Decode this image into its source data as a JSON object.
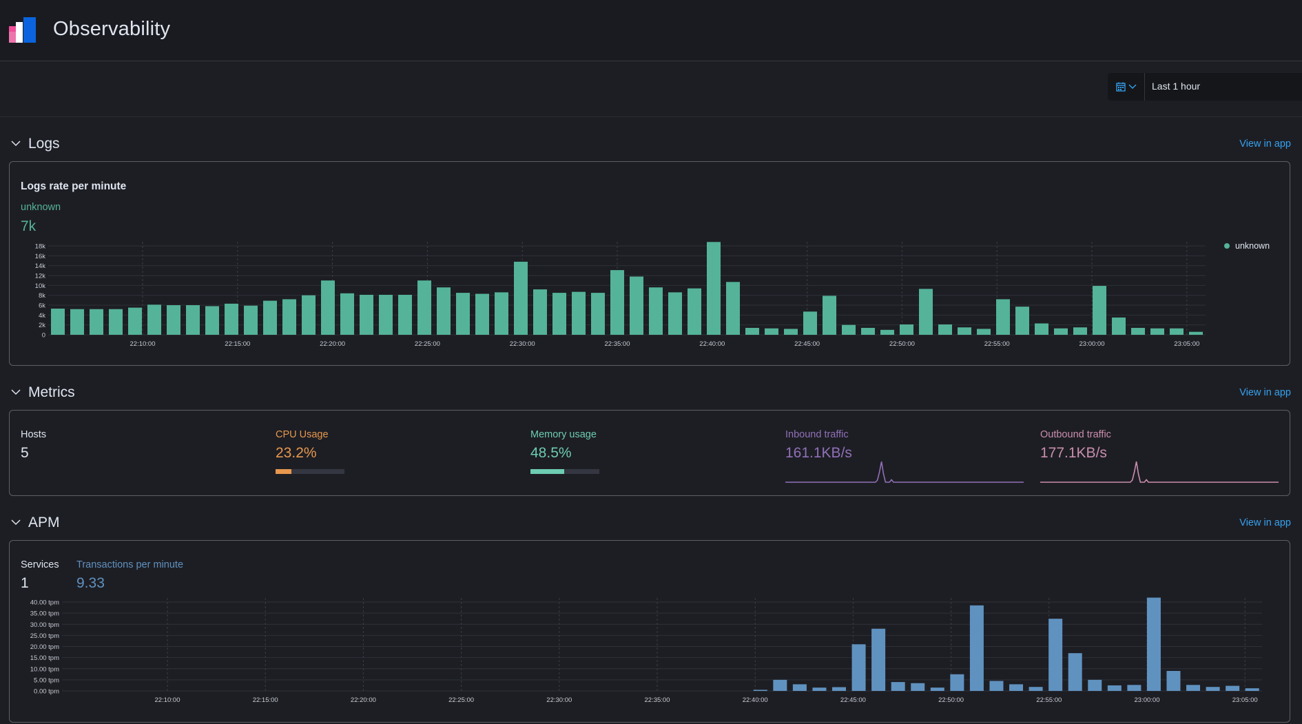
{
  "header": {
    "title": "Observability"
  },
  "toolbar": {
    "time_range": "Last 1 hour",
    "calendar_icon": "calendar-icon"
  },
  "logs": {
    "section_title": "Logs",
    "view_link": "View in app",
    "panel_title": "Logs rate per minute",
    "stat_label": "unknown",
    "stat_value": "7k",
    "legend_label": "unknown",
    "color": "#54b399"
  },
  "metrics": {
    "section_title": "Metrics",
    "view_link": "View in app",
    "hosts": {
      "label": "Hosts",
      "value": "5"
    },
    "cpu": {
      "label": "CPU Usage",
      "value": "23.2%",
      "fraction": 0.232,
      "color": "#e7974e"
    },
    "memory": {
      "label": "Memory usage",
      "value": "48.5%",
      "fraction": 0.485,
      "color": "#6dccb1"
    },
    "inbound": {
      "label": "Inbound traffic",
      "value": "161.1KB/s",
      "color": "#9170b8"
    },
    "outbound": {
      "label": "Outbound traffic",
      "value": "177.1KB/s",
      "color": "#ca8eae"
    }
  },
  "apm": {
    "section_title": "APM",
    "view_link": "View in app",
    "services": {
      "label": "Services",
      "value": "1"
    },
    "tpm": {
      "label": "Transactions per minute",
      "value": "9.33",
      "color": "#6092c0"
    }
  },
  "chart_data": [
    {
      "type": "bar",
      "title": "Logs rate per minute",
      "series": [
        {
          "name": "unknown",
          "values": [
            5300,
            5200,
            5200,
            5200,
            5500,
            6100,
            6000,
            6000,
            5800,
            6300,
            5900,
            6900,
            7200,
            8000,
            11000,
            8400,
            8100,
            8100,
            8100,
            11000,
            9600,
            8500,
            8300,
            8600,
            14800,
            9200,
            8500,
            8700,
            8500,
            13100,
            11800,
            9600,
            8600,
            9400,
            18800,
            10700,
            1400,
            1300,
            1200,
            4700,
            7900,
            2000,
            1400,
            1000,
            2100,
            9300,
            2100,
            1500,
            1200,
            7200,
            5700,
            2300,
            1300,
            1500,
            9900,
            3500,
            1400,
            1300,
            1300,
            600
          ]
        }
      ],
      "x_ticks": [
        "22:10:00",
        "22:15:00",
        "22:20:00",
        "22:25:00",
        "22:30:00",
        "22:35:00",
        "22:40:00",
        "22:45:00",
        "22:50:00",
        "22:55:00",
        "23:00:00",
        "23:05:00"
      ],
      "y_ticks": [
        "0",
        "2k",
        "4k",
        "6k",
        "8k",
        "10k",
        "12k",
        "14k",
        "16k",
        "18k"
      ],
      "ylim": [
        0,
        18000
      ],
      "legend": "right"
    },
    {
      "type": "line",
      "title": "Inbound traffic",
      "values": [
        0,
        0,
        0,
        0,
        0,
        0,
        0,
        0,
        0,
        0,
        0,
        0,
        0,
        0,
        0,
        0,
        0,
        0,
        0,
        0,
        0,
        0,
        0,
        0,
        0,
        0,
        0,
        0,
        0,
        0,
        0,
        0,
        0,
        0,
        0,
        0,
        0,
        0,
        0,
        0,
        0,
        0,
        0,
        0,
        0,
        0,
        0.1,
        0.5,
        1,
        0.4,
        0,
        0,
        0,
        0.12,
        0,
        0,
        0,
        0,
        0,
        0,
        0,
        0,
        0,
        0,
        0,
        0,
        0,
        0,
        0,
        0,
        0,
        0,
        0,
        0,
        0,
        0,
        0,
        0,
        0,
        0,
        0,
        0,
        0,
        0,
        0,
        0,
        0,
        0,
        0,
        0,
        0,
        0,
        0,
        0,
        0,
        0,
        0,
        0,
        0,
        0,
        0,
        0,
        0,
        0,
        0,
        0,
        0,
        0,
        0,
        0,
        0,
        0,
        0,
        0,
        0,
        0,
        0,
        0,
        0,
        0
      ]
    },
    {
      "type": "line",
      "title": "Outbound traffic",
      "values": [
        0,
        0,
        0,
        0,
        0,
        0,
        0,
        0,
        0,
        0,
        0,
        0,
        0,
        0,
        0,
        0,
        0,
        0,
        0,
        0,
        0,
        0,
        0,
        0,
        0,
        0,
        0,
        0,
        0,
        0,
        0,
        0,
        0,
        0,
        0,
        0,
        0,
        0,
        0,
        0,
        0,
        0,
        0,
        0,
        0,
        0,
        0.1,
        0.5,
        1,
        0.4,
        0,
        0,
        0,
        0.12,
        0,
        0,
        0,
        0,
        0,
        0,
        0,
        0,
        0,
        0,
        0,
        0,
        0,
        0,
        0,
        0,
        0,
        0,
        0,
        0,
        0,
        0,
        0,
        0,
        0,
        0,
        0,
        0,
        0,
        0,
        0,
        0,
        0,
        0,
        0,
        0,
        0,
        0,
        0,
        0,
        0,
        0,
        0,
        0,
        0,
        0,
        0,
        0,
        0,
        0,
        0,
        0,
        0,
        0,
        0,
        0,
        0,
        0,
        0,
        0,
        0,
        0,
        0,
        0,
        0,
        0
      ]
    },
    {
      "type": "bar",
      "title": "Transactions per minute",
      "series": [
        {
          "name": "Transactions per minute",
          "values": [
            0,
            0,
            0,
            0,
            0,
            0,
            0,
            0,
            0,
            0,
            0,
            0,
            0,
            0,
            0,
            0,
            0,
            0,
            0,
            0,
            0,
            0,
            0,
            0,
            0,
            0,
            0,
            0,
            0,
            0,
            0,
            0,
            0,
            0,
            0,
            0.5,
            5,
            3,
            1.5,
            1.7,
            21,
            28,
            4,
            3.5,
            1.5,
            7.5,
            38.5,
            4.5,
            3,
            1.8,
            32.5,
            17,
            5,
            2.5,
            2.7,
            42,
            9,
            2.7,
            1.8,
            2.3,
            1.2
          ]
        }
      ],
      "x_ticks": [
        "22:10:00",
        "22:15:00",
        "22:20:00",
        "22:25:00",
        "22:30:00",
        "22:35:00",
        "22:40:00",
        "22:45:00",
        "22:50:00",
        "22:55:00",
        "23:00:00",
        "23:05:00"
      ],
      "y_ticks": [
        "0.00 tpm",
        "5.00 tpm",
        "10.00 tpm",
        "15.00 tpm",
        "20.00 tpm",
        "25.00 tpm",
        "30.00 tpm",
        "35.00 tpm",
        "40.00 tpm"
      ],
      "ylim": [
        0,
        40
      ]
    }
  ]
}
